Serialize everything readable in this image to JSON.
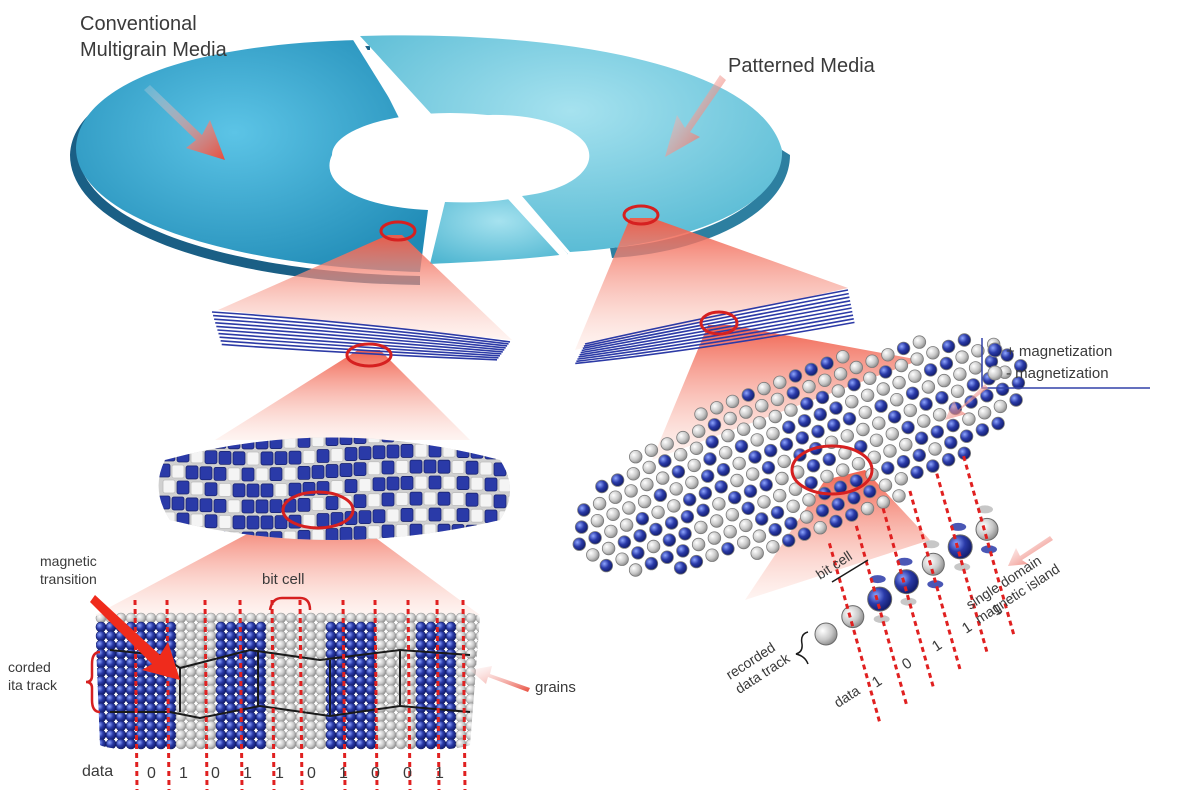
{
  "labels": {
    "conventional_line1": "Conventional",
    "conventional_line2": "Multigrain Media",
    "patterned": "Patterned Media",
    "legend_plus": "+ magnetization",
    "legend_minus": "- magnetization",
    "magnetic_transition_line1": "magnetic",
    "magnetic_transition_line2": "transition",
    "bit_cell_left": "bit cell",
    "recorded_track_left_line1": "corded",
    "recorded_track_left_line2": "ita track",
    "grains": "grains",
    "data_left": "data",
    "single_domain_line1": "single domain",
    "single_domain_line2": "magnetic island",
    "bit_cell_right": "bit cell",
    "recorded_track_right_line1": "recorded",
    "recorded_track_right_line2": "data track",
    "data_right": "data"
  },
  "data_bits_left": [
    "0",
    "1",
    "0",
    "1",
    "1",
    "0",
    "1",
    "0",
    "0",
    "1"
  ],
  "data_bits_right": [
    "1",
    "0",
    "1",
    "1",
    "1"
  ],
  "colors": {
    "disk_left": "#2e9fc8",
    "disk_right": "#6cc6dc",
    "disk_edge": "#1a5f85",
    "track": "#2c3aa6",
    "grain_blue": "#2a3aa8",
    "grain_gray": "#c8c8c8",
    "beam": "#f26a55",
    "dash_red": "#e02020",
    "text": "#3a3a3a"
  }
}
